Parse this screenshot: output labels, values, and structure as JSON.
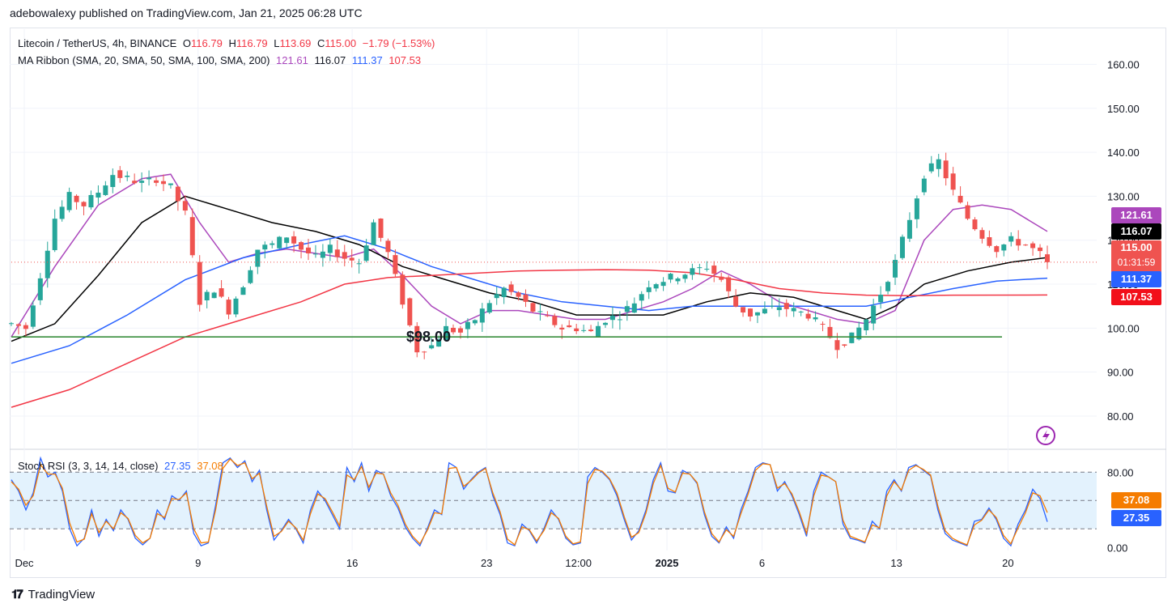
{
  "header": {
    "publisher": "adebowalexy published on TradingView.com, Jan 21, 2025 06:28 UTC"
  },
  "legend_main": {
    "symbol": "Litecoin / TetherUS, 4h, BINANCE",
    "o_label": "O",
    "o": "116.79",
    "h_label": "H",
    "h": "116.79",
    "l_label": "L",
    "l": "113.69",
    "c_label": "C",
    "c": "115.00",
    "change": "−1.79 (−1.53%)"
  },
  "legend_ma": {
    "label": "MA Ribbon (SMA, 20, SMA, 50, SMA, 100, SMA, 200)",
    "v20": "121.61",
    "v50": "116.07",
    "v100": "111.37",
    "v200": "107.53"
  },
  "legend_rsi": {
    "label": "Stoch RSI (3, 3, 14, 14, close)",
    "k": "27.35",
    "d": "37.08"
  },
  "badges": {
    "ma20": "121.61",
    "ma50": "116.07",
    "price": "115.00",
    "countdown": "01:31:59",
    "ma100": "111.37",
    "ma200": "107.53",
    "rsi_d": "37.08",
    "rsi_k": "27.35"
  },
  "annotation": {
    "support_label": "$98.00"
  },
  "colors": {
    "up": "#26a69a",
    "down": "#ef5350",
    "ma20": "#ab47bc",
    "ma50": "#000000",
    "ma100": "#2962ff",
    "ma200": "#f23645",
    "support": "#388e3c",
    "rsi_k": "#2962ff",
    "rsi_d": "#f57c00",
    "rsi_band": "#e3f2fd"
  },
  "footer": {
    "brand": "TradingView",
    "logo_icon": "tradingview-logo-icon"
  },
  "chart_data": [
    {
      "type": "candlestick",
      "title": "Litecoin / TetherUS, 4h, BINANCE",
      "x_ticks": [
        "Dec",
        "9",
        "16",
        "23",
        "12:00",
        "2025",
        "6",
        "13",
        "20"
      ],
      "y_ticks": [
        160,
        150,
        140,
        130,
        120,
        110,
        100,
        90,
        80
      ],
      "ylim": [
        73,
        168
      ],
      "grid": true,
      "last_price": 115.0,
      "support_level": 98.0,
      "price_path": [
        [
          0,
          101
        ],
        [
          2,
          100
        ],
        [
          4,
          112
        ],
        [
          6,
          125
        ],
        [
          8,
          130
        ],
        [
          10,
          128
        ],
        [
          12,
          131
        ],
        [
          14,
          135
        ],
        [
          16,
          134
        ],
        [
          18,
          133
        ],
        [
          20,
          134
        ],
        [
          22,
          132
        ],
        [
          24,
          126
        ],
        [
          26,
          106
        ],
        [
          28,
          109
        ],
        [
          30,
          104
        ],
        [
          32,
          110
        ],
        [
          34,
          118
        ],
        [
          36,
          119
        ],
        [
          38,
          121
        ],
        [
          40,
          118
        ],
        [
          42,
          116
        ],
        [
          44,
          118
        ],
        [
          46,
          116
        ],
        [
          48,
          115
        ],
        [
          50,
          124
        ],
        [
          52,
          117
        ],
        [
          54,
          106
        ],
        [
          56,
          95
        ],
        [
          58,
          96
        ],
        [
          60,
          100
        ],
        [
          62,
          99
        ],
        [
          64,
          102
        ],
        [
          66,
          106
        ],
        [
          68,
          109
        ],
        [
          70,
          107
        ],
        [
          72,
          104
        ],
        [
          74,
          102
        ],
        [
          76,
          100
        ],
        [
          78,
          100
        ],
        [
          80,
          99
        ],
        [
          82,
          102
        ],
        [
          84,
          103
        ],
        [
          86,
          106
        ],
        [
          88,
          110
        ],
        [
          90,
          111
        ],
        [
          92,
          112
        ],
        [
          94,
          113
        ],
        [
          96,
          114
        ],
        [
          98,
          111
        ],
        [
          100,
          105
        ],
        [
          102,
          103
        ],
        [
          104,
          104
        ],
        [
          106,
          105
        ],
        [
          108,
          104
        ],
        [
          110,
          103
        ],
        [
          112,
          100
        ],
        [
          114,
          96
        ],
        [
          116,
          98
        ],
        [
          118,
          102
        ],
        [
          120,
          108
        ],
        [
          122,
          115
        ],
        [
          124,
          125
        ],
        [
          126,
          135
        ],
        [
          128,
          138
        ],
        [
          130,
          131
        ],
        [
          132,
          125
        ],
        [
          134,
          121
        ],
        [
          136,
          118
        ],
        [
          138,
          120
        ],
        [
          140,
          119
        ],
        [
          142,
          116.79
        ],
        [
          143,
          115
        ]
      ],
      "ma_ribbon": [
        {
          "name": "SMA 20",
          "last": 121.61,
          "points": [
            [
              0,
              98
            ],
            [
              6,
              114
            ],
            [
              12,
              128
            ],
            [
              18,
              134
            ],
            [
              22,
              135
            ],
            [
              26,
              124
            ],
            [
              30,
              115
            ],
            [
              34,
              117
            ],
            [
              38,
              118
            ],
            [
              42,
              117
            ],
            [
              46,
              116
            ],
            [
              50,
              118
            ],
            [
              54,
              112
            ],
            [
              58,
              105
            ],
            [
              62,
              101
            ],
            [
              66,
              104
            ],
            [
              70,
              104
            ],
            [
              74,
              103
            ],
            [
              78,
              102
            ],
            [
              82,
              102
            ],
            [
              86,
              104
            ],
            [
              90,
              106
            ],
            [
              94,
              109
            ],
            [
              98,
              113
            ],
            [
              102,
              110
            ],
            [
              106,
              106
            ],
            [
              110,
              104
            ],
            [
              114,
              102
            ],
            [
              118,
              101
            ],
            [
              122,
              104
            ],
            [
              126,
              120
            ],
            [
              130,
              127
            ],
            [
              134,
              128
            ],
            [
              138,
              127
            ],
            [
              143,
              122
            ]
          ]
        },
        {
          "name": "SMA 50",
          "last": 116.07,
          "points": [
            [
              0,
              97
            ],
            [
              6,
              101
            ],
            [
              12,
              112
            ],
            [
              18,
              124
            ],
            [
              24,
              130
            ],
            [
              30,
              127
            ],
            [
              36,
              124
            ],
            [
              42,
              122
            ],
            [
              48,
              119
            ],
            [
              54,
              114
            ],
            [
              60,
              111
            ],
            [
              66,
              108
            ],
            [
              72,
              106
            ],
            [
              78,
              103
            ],
            [
              84,
              103
            ],
            [
              90,
              103
            ],
            [
              96,
              106
            ],
            [
              102,
              108
            ],
            [
              108,
              107
            ],
            [
              114,
              104
            ],
            [
              118,
              102
            ],
            [
              122,
              105
            ],
            [
              126,
              110
            ],
            [
              132,
              113
            ],
            [
              138,
              115
            ],
            [
              143,
              116.07
            ]
          ]
        },
        {
          "name": "SMA 100",
          "last": 111.37,
          "points": [
            [
              0,
              92
            ],
            [
              8,
              96
            ],
            [
              16,
              103
            ],
            [
              24,
              111
            ],
            [
              32,
              116
            ],
            [
              40,
              119
            ],
            [
              46,
              121
            ],
            [
              52,
              118
            ],
            [
              58,
              114
            ],
            [
              64,
              111
            ],
            [
              70,
              108
            ],
            [
              76,
              106
            ],
            [
              82,
              105
            ],
            [
              88,
              104
            ],
            [
              94,
              105
            ],
            [
              100,
              105
            ],
            [
              106,
              105
            ],
            [
              112,
              105
            ],
            [
              118,
              105
            ],
            [
              124,
              107
            ],
            [
              130,
              109
            ],
            [
              136,
              110.7
            ],
            [
              143,
              111.37
            ]
          ]
        },
        {
          "name": "SMA 200",
          "last": 107.53,
          "points": [
            [
              0,
              82
            ],
            [
              8,
              86
            ],
            [
              16,
              92
            ],
            [
              24,
              98
            ],
            [
              32,
              102
            ],
            [
              40,
              106
            ],
            [
              46,
              110
            ],
            [
              52,
              111.5
            ],
            [
              58,
              112
            ],
            [
              64,
              112.5
            ],
            [
              70,
              113
            ],
            [
              76,
              113.2
            ],
            [
              82,
              113.3
            ],
            [
              88,
              113.2
            ],
            [
              94,
              112.6
            ],
            [
              100,
              111
            ],
            [
              106,
              109
            ],
            [
              112,
              108
            ],
            [
              118,
              107.5
            ],
            [
              124,
              107.4
            ],
            [
              130,
              107.5
            ],
            [
              143,
              107.53
            ]
          ]
        }
      ]
    },
    {
      "type": "line",
      "title": "Stoch RSI (3, 3, 14, 14, close)",
      "y_ticks": [
        80,
        0
      ],
      "y_tick_labels": [
        "80.00",
        "0.00"
      ],
      "band": [
        20,
        80
      ],
      "ylim": [
        -3,
        100
      ],
      "series": [
        {
          "name": "K",
          "last": 27.35,
          "values": [
            72,
            60,
            40,
            58,
            95,
            75,
            80,
            60,
            20,
            2,
            10,
            40,
            12,
            30,
            18,
            40,
            30,
            10,
            3,
            10,
            40,
            30,
            55,
            50,
            60,
            15,
            2,
            5,
            45,
            90,
            95,
            85,
            92,
            70,
            82,
            40,
            8,
            18,
            30,
            20,
            5,
            40,
            60,
            50,
            35,
            20,
            85,
            70,
            90,
            60,
            82,
            78,
            55,
            42,
            22,
            10,
            2,
            20,
            40,
            35,
            90,
            85,
            62,
            72,
            80,
            85,
            55,
            35,
            5,
            2,
            25,
            18,
            5,
            20,
            40,
            30,
            10,
            3,
            5,
            75,
            85,
            80,
            72,
            55,
            30,
            8,
            18,
            40,
            72,
            90,
            60,
            58,
            82,
            78,
            68,
            35,
            12,
            5,
            22,
            10,
            40,
            60,
            85,
            90,
            88,
            60,
            70,
            55,
            35,
            12,
            60,
            80,
            75,
            70,
            25,
            10,
            8,
            5,
            28,
            20,
            60,
            72,
            60,
            85,
            88,
            82,
            76,
            40,
            15,
            8,
            5,
            2,
            28,
            30,
            42,
            30,
            10,
            2,
            25,
            40,
            62,
            52,
            27.35
          ]
        },
        {
          "name": "D",
          "last": 37.08,
          "values": [
            70,
            62,
            45,
            55,
            88,
            78,
            78,
            63,
            26,
            6,
            9,
            36,
            16,
            28,
            20,
            37,
            31,
            13,
            5,
            10,
            36,
            32,
            52,
            51,
            58,
            20,
            5,
            6,
            40,
            84,
            94,
            87,
            90,
            73,
            79,
            44,
            12,
            17,
            28,
            21,
            8,
            36,
            57,
            52,
            38,
            23,
            77,
            72,
            86,
            64,
            79,
            78,
            58,
            45,
            25,
            12,
            4,
            18,
            37,
            36,
            84,
            85,
            65,
            71,
            79,
            84,
            58,
            38,
            9,
            3,
            22,
            19,
            7,
            18,
            37,
            31,
            12,
            4,
            6,
            68,
            83,
            81,
            73,
            58,
            33,
            11,
            16,
            37,
            68,
            87,
            63,
            59,
            79,
            78,
            69,
            38,
            15,
            6,
            19,
            12,
            36,
            57,
            82,
            89,
            88,
            63,
            68,
            57,
            38,
            15,
            55,
            77,
            75,
            70,
            29,
            12,
            9,
            6,
            24,
            21,
            55,
            70,
            61,
            82,
            87,
            83,
            77,
            44,
            18,
            10,
            6,
            3,
            24,
            29,
            40,
            32,
            13,
            4,
            21,
            37,
            58,
            55,
            37.08
          ]
        }
      ]
    }
  ]
}
